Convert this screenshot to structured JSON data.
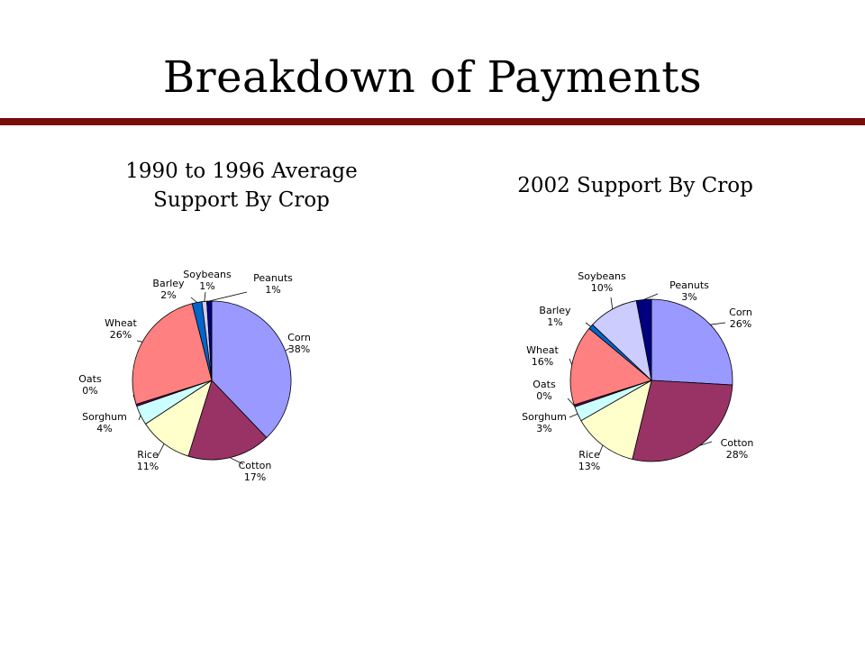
{
  "slide": {
    "title": "Breakdown of Payments"
  },
  "chart_data": [
    {
      "type": "pie",
      "title": "1990 to 1996 Average\nSupport By Crop",
      "slices": [
        {
          "name": "Corn",
          "value": 38,
          "label": "38%",
          "color": "#9999ff"
        },
        {
          "name": "Cotton",
          "value": 17,
          "label": "17%",
          "color": "#993366"
        },
        {
          "name": "Rice",
          "value": 11,
          "label": "11%",
          "color": "#ffffcc"
        },
        {
          "name": "Sorghum",
          "value": 4,
          "label": "4%",
          "color": "#ccffff"
        },
        {
          "name": "Oats",
          "value": 0.4,
          "label": "0%",
          "color": "#660066"
        },
        {
          "name": "Wheat",
          "value": 26,
          "label": "26%",
          "color": "#ff8080"
        },
        {
          "name": "Barley",
          "value": 2,
          "label": "2%",
          "color": "#0066cc"
        },
        {
          "name": "Soybeans",
          "value": 1,
          "label": "1%",
          "color": "#ccccff"
        },
        {
          "name": "Peanuts",
          "value": 1,
          "label": "1%",
          "color": "#000080"
        }
      ]
    },
    {
      "type": "pie",
      "title": "2002 Support By Crop",
      "slices": [
        {
          "name": "Corn",
          "value": 26,
          "label": "26%",
          "color": "#9999ff"
        },
        {
          "name": "Cotton",
          "value": 28,
          "label": "28%",
          "color": "#993366"
        },
        {
          "name": "Rice",
          "value": 13,
          "label": "13%",
          "color": "#ffffcc"
        },
        {
          "name": "Sorghum",
          "value": 3,
          "label": "3%",
          "color": "#ccffff"
        },
        {
          "name": "Oats",
          "value": 0.4,
          "label": "0%",
          "color": "#660066"
        },
        {
          "name": "Wheat",
          "value": 16,
          "label": "16%",
          "color": "#ff8080"
        },
        {
          "name": "Barley",
          "value": 1,
          "label": "1%",
          "color": "#0066cc"
        },
        {
          "name": "Soybeans",
          "value": 10,
          "label": "10%",
          "color": "#ccccff"
        },
        {
          "name": "Peanuts",
          "value": 3,
          "label": "3%",
          "color": "#000080"
        }
      ]
    }
  ]
}
